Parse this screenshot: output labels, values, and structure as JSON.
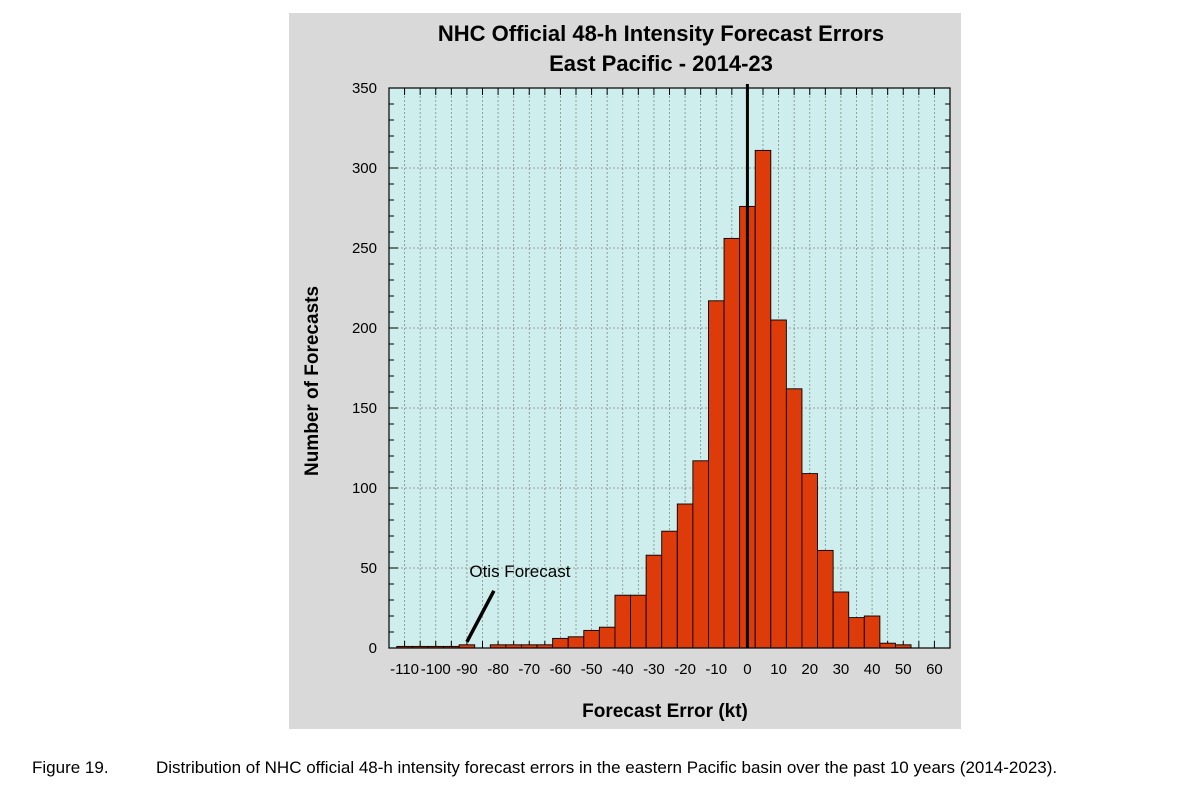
{
  "chart_data": {
    "type": "bar",
    "title": "NHC Official 48-h Intensity Forecast Errors",
    "subtitle": "East Pacific - 2014-23",
    "xlabel": "Forecast Error (kt)",
    "ylabel": "Number of Forecasts",
    "xlim": [
      -115,
      65
    ],
    "ylim": [
      0,
      350
    ],
    "bin_width": 5,
    "x_ticks": [
      -110,
      -100,
      -90,
      -80,
      -70,
      -60,
      -50,
      -40,
      -30,
      -20,
      -10,
      0,
      10,
      20,
      30,
      40,
      50,
      60
    ],
    "y_ticks": [
      0,
      50,
      100,
      150,
      200,
      250,
      300,
      350
    ],
    "grid": true,
    "bins": [
      {
        "x": -110,
        "value": 1
      },
      {
        "x": -105,
        "value": 1
      },
      {
        "x": -100,
        "value": 1
      },
      {
        "x": -95,
        "value": 1
      },
      {
        "x": -90,
        "value": 2
      },
      {
        "x": -85,
        "value": 0
      },
      {
        "x": -80,
        "value": 2
      },
      {
        "x": -75,
        "value": 2
      },
      {
        "x": -70,
        "value": 2
      },
      {
        "x": -65,
        "value": 2
      },
      {
        "x": -60,
        "value": 6
      },
      {
        "x": -55,
        "value": 7
      },
      {
        "x": -50,
        "value": 11
      },
      {
        "x": -45,
        "value": 13
      },
      {
        "x": -40,
        "value": 33
      },
      {
        "x": -35,
        "value": 33
      },
      {
        "x": -30,
        "value": 58
      },
      {
        "x": -25,
        "value": 73
      },
      {
        "x": -20,
        "value": 90
      },
      {
        "x": -15,
        "value": 117
      },
      {
        "x": -10,
        "value": 217
      },
      {
        "x": -5,
        "value": 256
      },
      {
        "x": 0,
        "value": 276
      },
      {
        "x": 5,
        "value": 311
      },
      {
        "x": 10,
        "value": 205
      },
      {
        "x": 15,
        "value": 162
      },
      {
        "x": 20,
        "value": 109
      },
      {
        "x": 25,
        "value": 61
      },
      {
        "x": 30,
        "value": 35
      },
      {
        "x": 35,
        "value": 19
      },
      {
        "x": 40,
        "value": 20
      },
      {
        "x": 45,
        "value": 3
      },
      {
        "x": 50,
        "value": 2
      }
    ],
    "annotation": {
      "text": "Otis Forecast",
      "target_x": -90,
      "target_value": 2
    },
    "reference_line_x": 0,
    "colors": {
      "bar": "#dd3b0a",
      "plot_bg": "#cdeeec",
      "panel_bg": "#d9d9d9",
      "grid": "#8a8a8a"
    }
  },
  "caption": {
    "label": "Figure 19.",
    "text": "Distribution of NHC official 48-h intensity forecast errors in the eastern Pacific basin over the past 10 years (2014-2023)."
  }
}
